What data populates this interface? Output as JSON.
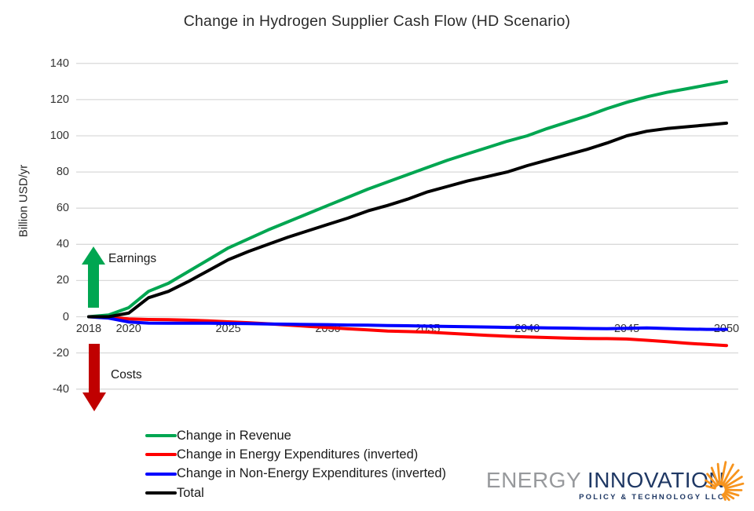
{
  "title": "Change in Hydrogen Supplier Cash Flow (HD Scenario)",
  "annotations": {
    "earnings_label": "Earnings",
    "earnings_color": "#00A651",
    "costs_label": "Costs",
    "costs_color": "#C00000"
  },
  "logo": {
    "word1": "ENERGY",
    "word2": "INNOVATION",
    "tagline": "POLICY & TECHNOLOGY LLC",
    "colors": {
      "word1": "#97999C",
      "word2": "#1F3864",
      "sunburst": "#F7941D"
    }
  },
  "chart_data": {
    "type": "line",
    "title": "Change in Hydrogen Supplier Cash Flow (HD Scenario)",
    "xlabel": "",
    "ylabel": "Billion USD/yr",
    "ylim": [
      -40,
      140
    ],
    "xlim": [
      2018,
      2050
    ],
    "grid": true,
    "grid_color": "#D9D9D9",
    "legend_position": "bottom-left",
    "yticks": [
      140,
      120,
      100,
      80,
      60,
      40,
      20,
      0,
      -20,
      -40
    ],
    "xticks": [
      2018,
      2020,
      2025,
      2030,
      2035,
      2040,
      2045,
      2050
    ],
    "x": [
      2018,
      2019,
      2020,
      2021,
      2022,
      2023,
      2024,
      2025,
      2026,
      2027,
      2028,
      2029,
      2030,
      2031,
      2032,
      2033,
      2034,
      2035,
      2036,
      2037,
      2038,
      2039,
      2040,
      2041,
      2042,
      2043,
      2044,
      2045,
      2046,
      2047,
      2048,
      2049,
      2050
    ],
    "series": [
      {
        "name": "Change in Revenue",
        "color": "#00A651",
        "values": [
          0,
          1,
          5,
          14,
          18.5,
          25,
          31.5,
          38,
          43,
          48,
          52.5,
          57,
          61.5,
          66,
          70.5,
          74.5,
          78.5,
          82.5,
          86.5,
          90,
          93.5,
          97,
          100,
          104,
          107.5,
          111,
          115,
          118.5,
          121.5,
          124,
          126,
          128,
          130
        ]
      },
      {
        "name": "Change in Energy Expenditures (inverted)",
        "color": "#FF0000",
        "values": [
          0,
          -0.3,
          -1.2,
          -1.5,
          -1.6,
          -1.9,
          -2.3,
          -2.8,
          -3.3,
          -3.9,
          -4.6,
          -5.3,
          -6,
          -6.7,
          -7.3,
          -7.9,
          -8.2,
          -8.5,
          -9.1,
          -9.7,
          -10.3,
          -10.8,
          -11.2,
          -11.5,
          -11.8,
          -12,
          -12.1,
          -12.3,
          -13,
          -13.8,
          -14.6,
          -15.3,
          -15.9
        ]
      },
      {
        "name": "Change in Non-Energy Expenditures (inverted)",
        "color": "#0000FF",
        "values": [
          0,
          -0.8,
          -2.9,
          -3.5,
          -3.6,
          -3.6,
          -3.6,
          -3.7,
          -3.8,
          -4,
          -4.1,
          -4.3,
          -4.4,
          -4.6,
          -4.7,
          -4.9,
          -5,
          -5.2,
          -5.4,
          -5.5,
          -5.7,
          -5.9,
          -6,
          -6.2,
          -6.3,
          -6.5,
          -6.6,
          -6.4,
          -6.2,
          -6.5,
          -6.8,
          -7,
          -7
        ]
      },
      {
        "name": "Total",
        "color": "#000000",
        "values": [
          0,
          0,
          2,
          10.5,
          14,
          19.5,
          25.5,
          31.5,
          36,
          40,
          44,
          47.5,
          51,
          54.5,
          58.5,
          61.5,
          65,
          69,
          72,
          75,
          77.5,
          80,
          83.5,
          86.5,
          89.5,
          92.5,
          96,
          100,
          102.5,
          104,
          105,
          106,
          107
        ]
      }
    ]
  }
}
